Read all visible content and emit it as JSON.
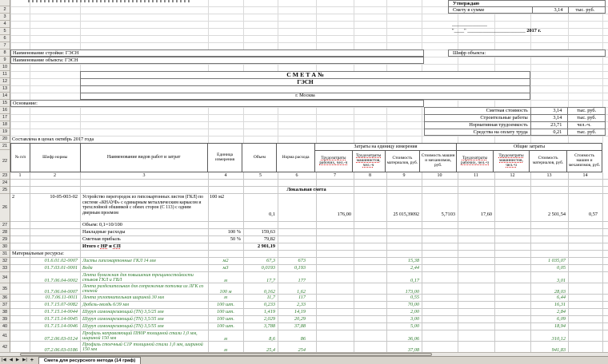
{
  "approval": {
    "approve_label": "Утверждаю",
    "sum_label": "Смету в сумме",
    "sum_value": "3,14",
    "sum_unit": "тыс. руб.",
    "sign_line": "______________",
    "date_prefix": "\"____\" _______________________",
    "date_year": "2017 г.",
    "object_code_label": "Шифр объекта:"
  },
  "doc": {
    "construction_label": "Наименование стройки: ГЭСН",
    "object_label": "Наименование объекта: ГЭСН",
    "title1": "С М Е Т А   №",
    "title2": "ГЭСН",
    "city": "г. Москва",
    "basis_label": "Основание:",
    "prices_note": "Составлена в ценах октябрь 2017 года"
  },
  "right_totals": [
    {
      "label": "Сметная стоимость",
      "value": "3,14",
      "unit": "тыс. руб."
    },
    {
      "label": "Строительные работы",
      "value": "3,14",
      "unit": "тыс. руб."
    },
    {
      "label": "Нормативная трудоемкость",
      "value": "23,71",
      "unit": "чел.-ч."
    },
    {
      "label": "Средства на оплату труда",
      "value": "0,21",
      "unit": "тыс. руб."
    }
  ],
  "table": {
    "group_per_unit": "Затраты на единицу измерения",
    "group_total": "Общие затраты",
    "columns": [
      "№ п/п",
      "Шифр нормы",
      "Наименование видов работ и затрат",
      "Единица измерения",
      "Объем",
      "Норма расхода",
      "Трудозатраты рабочих, чел.-ч",
      "Трудозатраты машинистов, чел.-ч",
      "Стоимость материалов, руб.",
      "Стоимость машин и механизмов, руб.",
      "Трудозатраты рабочих, чел.-ч",
      "Трудозатраты машинистов, чел.-ч",
      "Стоимость материалов, руб.",
      "Стоимость машин и механизмов, руб."
    ],
    "col_numbers": [
      "1",
      "2",
      "3",
      "4",
      "5",
      "6",
      "7",
      "8",
      "9",
      "10",
      "11",
      "12",
      "13",
      "14"
    ],
    "section_title": "Локальная смета",
    "item": {
      "num": "2",
      "code": "10-05-003-02",
      "name": "Устройство перегородок из гипсокартонных листов (ГКЛ) по системе «КНАУФ» с одинарным металлическим каркасом и трехслойной обшивкой с обеих сторон (С 113) с одним дверным проемом",
      "unit": "100 м2",
      "volume": "0,1",
      "labor_unit": "176,00",
      "materials_unit": "25 015,39092",
      "machines_unit": "5,7103",
      "labor_total": "17,60",
      "materials_total": "2 501,54",
      "machines_total": "0,57",
      "volume_note": "Объем: 0,1=10/100"
    },
    "overhead": {
      "label": "Накладные расходы",
      "percent": "100 %",
      "value": "159,63"
    },
    "profit": {
      "label": "Сметная прибыль",
      "percent": "50 %",
      "value": "79,82"
    },
    "total_row": {
      "prefix": "Итого с ",
      "term1": "НР",
      "mid": " и ",
      "term2": "СП",
      "value": "2 901,19"
    },
    "materials_caption": "Материальные ресурсы:",
    "materials": [
      {
        "code": "01.6.01.02-0007",
        "name": "Листы гипсокартонные ГКЛ 14 мм",
        "unit": "м2",
        "volume": "67,3",
        "norm": "673",
        "unit_cost": "15,38",
        "total_cost": "1 035,07"
      },
      {
        "code": "01.7.03.01-0001",
        "name": "Вода",
        "unit": "м3",
        "volume": "0,0193",
        "norm": "0,193",
        "unit_cost": "2,44",
        "total_cost": "0,05"
      },
      {
        "code": "01.7.06.04-0002",
        "name": "Лента бумажная для повышения трещиностойкости стыков ГКЛ и ГВЛ",
        "unit": "м",
        "volume": "17,7",
        "norm": "177",
        "unit_cost": "0,17",
        "total_cost": "3,01"
      },
      {
        "code": "01.7.06.04-0007",
        "name": "Лента разделительная для сопряжения потолка из ЛГК со стеной",
        "unit": "100 м",
        "volume": "0,162",
        "norm": "1,62",
        "unit_cost": "173,00",
        "total_cost": "28,03"
      },
      {
        "code": "01.7.06.11-0011",
        "name": "Лента уплотнительная шириной 30 мм",
        "unit": "м",
        "volume": "11,7",
        "norm": "117",
        "unit_cost": "0,55",
        "total_cost": "6,44"
      },
      {
        "code": "01.7.15.07-0082",
        "name": "Дюбель-гвоздь 6/39 мм",
        "unit": "100 шт.",
        "volume": "0,233",
        "norm": "2,33",
        "unit_cost": "70,00",
        "total_cost": "16,31"
      },
      {
        "code": "01.7.15.14-0044",
        "name": "Шуруп самонарезающий (TN) 3,5/25 мм",
        "unit": "100 шт.",
        "volume": "1,419",
        "norm": "14,19",
        "unit_cost": "2,00",
        "total_cost": "2,84"
      },
      {
        "code": "01.7.15.14-0045",
        "name": "Шуруп самонарезающий (TN) 3,5/35 мм",
        "unit": "100 шт.",
        "volume": "2,029",
        "norm": "20,29",
        "unit_cost": "3,00",
        "total_cost": "6,09"
      },
      {
        "code": "01.7.15.14-0046",
        "name": "Шуруп самонарезающий (TN) 3,5/55 мм",
        "unit": "100 шт.",
        "volume": "3,788",
        "norm": "37,88",
        "unit_cost": "5,00",
        "total_cost": "18,94"
      },
      {
        "code": "07.2.06.03-0124",
        "name": "Профиль направляющий ПН0Р толщиной стали 1,0 мм, шириной 150 мм",
        "unit": "м",
        "volume": "8,6",
        "norm": "86",
        "unit_cost": "36,06",
        "total_cost": "310,12"
      },
      {
        "code": "07.2.06.03-0186",
        "name": "Профиль стоечный С1Р толщиной стали 1,0 мм, шириной 150 мм",
        "unit": "м",
        "volume": "25,4",
        "norm": "254",
        "unit_cost": "37,08",
        "total_cost": "941,83"
      }
    ]
  },
  "gutter_rows": [
    "1",
    "2",
    "3",
    "4",
    "5",
    "6",
    "7",
    "8",
    "9",
    "10",
    "11",
    "12",
    "13",
    "14",
    "15",
    "16",
    "17",
    "18",
    "19",
    "20",
    "21",
    "22",
    "23",
    "24",
    "25",
    "26",
    "27",
    "28",
    "29",
    "30",
    "31",
    "32",
    "33",
    "34",
    "35",
    "36",
    "37",
    "38",
    "39",
    "40",
    "41",
    "42"
  ],
  "tabbar": {
    "icons": {
      "first": "|◀",
      "prev": "◀",
      "next": "▶",
      "last": "▶|",
      "add": "+"
    },
    "tab_label": "Смета для ресурсного метода (14 граф)"
  }
}
